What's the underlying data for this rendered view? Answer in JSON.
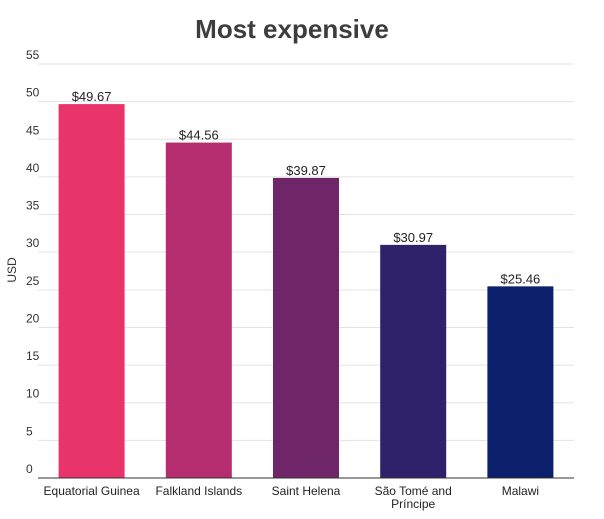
{
  "chart_data": {
    "type": "bar",
    "title": "Most expensive",
    "ylabel": "USD",
    "xlabel": "",
    "ylim": [
      0,
      55
    ],
    "yticks": [
      0,
      5,
      10,
      15,
      20,
      25,
      30,
      35,
      40,
      45,
      50,
      55
    ],
    "grid": true,
    "categories": [
      [
        "Equatorial Guinea"
      ],
      [
        "Falkland Islands"
      ],
      [
        "Saint Helena"
      ],
      [
        "São Tomé and",
        "Príncipe"
      ],
      [
        "Malawi"
      ]
    ],
    "values": [
      49.67,
      44.56,
      39.87,
      30.97,
      25.46
    ],
    "data_labels": [
      "$49.67",
      "$44.56",
      "$39.87",
      "$30.97",
      "$25.46"
    ],
    "colors": [
      "#e8336b",
      "#b52d6e",
      "#6e2668",
      "#2f216a",
      "#0b1f6b"
    ]
  }
}
